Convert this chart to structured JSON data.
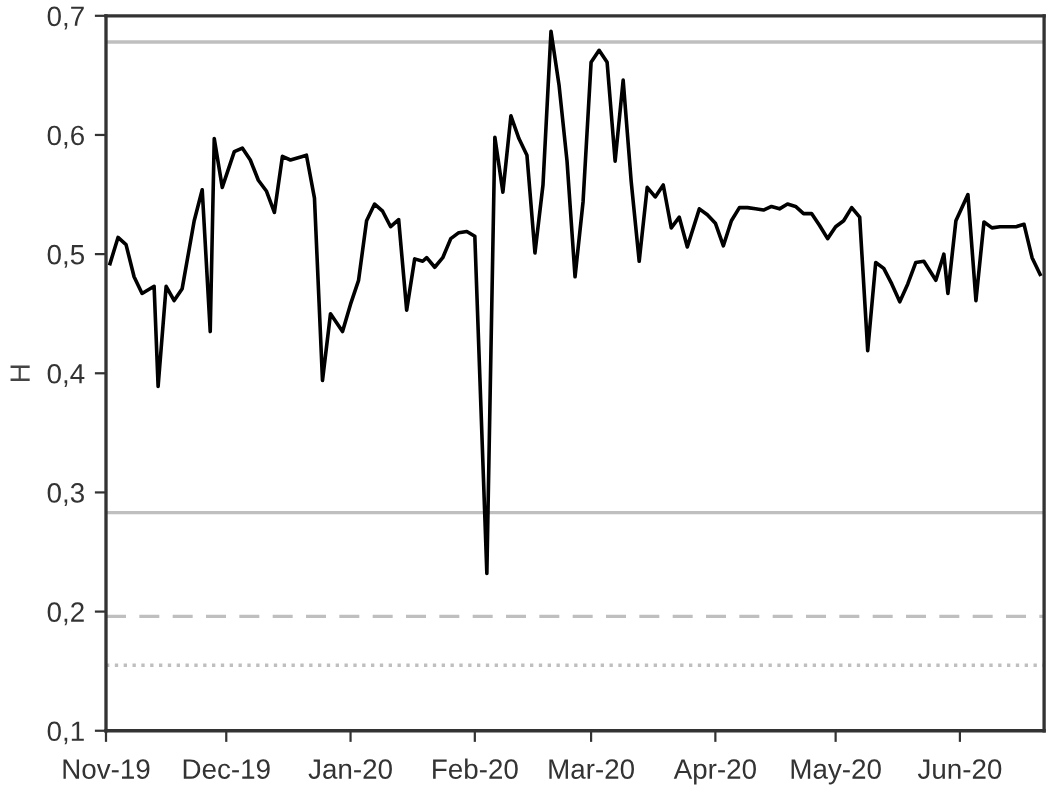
{
  "chart_data": {
    "type": "line",
    "ylabel": "H",
    "series": [
      {
        "color": "#000000",
        "x": [
          "2019-11-02",
          "2019-11-04",
          "2019-11-06",
          "2019-11-08",
          "2019-11-10",
          "2019-11-13",
          "2019-11-14",
          "2019-11-16",
          "2019-11-18",
          "2019-11-20",
          "2019-11-23",
          "2019-11-25",
          "2019-11-27",
          "2019-11-28",
          "2019-11-30",
          "2019-12-03",
          "2019-12-05",
          "2019-12-07",
          "2019-12-09",
          "2019-12-11",
          "2019-12-13",
          "2019-12-15",
          "2019-12-17",
          "2019-12-20",
          "2019-12-21",
          "2019-12-23",
          "2019-12-25",
          "2019-12-27",
          "2019-12-30",
          "2020-01-01",
          "2020-01-03",
          "2020-01-05",
          "2020-01-07",
          "2020-01-09",
          "2020-01-11",
          "2020-01-13",
          "2020-01-15",
          "2020-01-17",
          "2020-01-19",
          "2020-01-20",
          "2020-01-22",
          "2020-01-24",
          "2020-01-26",
          "2020-01-28",
          "2020-01-30",
          "2020-02-01",
          "2020-02-04",
          "2020-02-06",
          "2020-02-08",
          "2020-02-10",
          "2020-02-12",
          "2020-02-14",
          "2020-02-16",
          "2020-02-18",
          "2020-02-20",
          "2020-02-22",
          "2020-02-24",
          "2020-02-26",
          "2020-02-28",
          "2020-03-01",
          "2020-03-03",
          "2020-03-05",
          "2020-03-07",
          "2020-03-09",
          "2020-03-11",
          "2020-03-13",
          "2020-03-15",
          "2020-03-17",
          "2020-03-19",
          "2020-03-21",
          "2020-03-23",
          "2020-03-25",
          "2020-03-28",
          "2020-03-30",
          "2020-04-01",
          "2020-04-03",
          "2020-04-05",
          "2020-04-07",
          "2020-04-09",
          "2020-04-11",
          "2020-04-13",
          "2020-04-15",
          "2020-04-17",
          "2020-04-19",
          "2020-04-21",
          "2020-04-23",
          "2020-04-25",
          "2020-04-27",
          "2020-04-29",
          "2020-05-01",
          "2020-05-03",
          "2020-05-05",
          "2020-05-07",
          "2020-05-09",
          "2020-05-11",
          "2020-05-13",
          "2020-05-15",
          "2020-05-17",
          "2020-05-19",
          "2020-05-21",
          "2020-05-23",
          "2020-05-26",
          "2020-05-28",
          "2020-05-29",
          "2020-05-31",
          "2020-06-03",
          "2020-06-05",
          "2020-06-07",
          "2020-06-09",
          "2020-06-11",
          "2020-06-13",
          "2020-06-15",
          "2020-06-17",
          "2020-06-19",
          "2020-06-21"
        ],
        "values": [
          0.492,
          0.514,
          0.508,
          0.481,
          0.467,
          0.473,
          0.389,
          0.473,
          0.461,
          0.471,
          0.528,
          0.554,
          0.435,
          0.597,
          0.556,
          0.586,
          0.589,
          0.579,
          0.562,
          0.553,
          0.535,
          0.582,
          0.579,
          0.582,
          0.583,
          0.547,
          0.394,
          0.45,
          0.435,
          0.458,
          0.478,
          0.528,
          0.542,
          0.536,
          0.523,
          0.529,
          0.453,
          0.496,
          0.494,
          0.497,
          0.489,
          0.497,
          0.513,
          0.518,
          0.519,
          0.515,
          0.232,
          0.598,
          0.552,
          0.616,
          0.597,
          0.583,
          0.501,
          0.558,
          0.687,
          0.642,
          0.578,
          0.481,
          0.544,
          0.661,
          0.671,
          0.661,
          0.578,
          0.646,
          0.561,
          0.494,
          0.556,
          0.548,
          0.558,
          0.522,
          0.531,
          0.506,
          0.538,
          0.533,
          0.526,
          0.507,
          0.528,
          0.539,
          0.539,
          0.538,
          0.537,
          0.54,
          0.538,
          0.542,
          0.54,
          0.534,
          0.534,
          0.524,
          0.513,
          0.523,
          0.528,
          0.539,
          0.531,
          0.419,
          0.493,
          0.488,
          0.475,
          0.46,
          0.475,
          0.493,
          0.494,
          0.478,
          0.5,
          0.467,
          0.528,
          0.55,
          0.461,
          0.527,
          0.522,
          0.523,
          0.523,
          0.523,
          0.525,
          0.497,
          0.483
        ]
      }
    ],
    "xlim": [
      "2019-11-01",
      "2020-06-22"
    ],
    "xticks": [
      {
        "value": "2019-11-01",
        "label": "Nov-19"
      },
      {
        "value": "2019-12-01",
        "label": "Dec-19"
      },
      {
        "value": "2020-01-01",
        "label": "Jan-20"
      },
      {
        "value": "2020-02-01",
        "label": "Feb-20"
      },
      {
        "value": "2020-03-01",
        "label": "Mar-20"
      },
      {
        "value": "2020-04-01",
        "label": "Apr-20"
      },
      {
        "value": "2020-05-01",
        "label": "May-20"
      },
      {
        "value": "2020-06-01",
        "label": "Jun-20"
      }
    ],
    "ylim": [
      0.1,
      0.7
    ],
    "yticks": [
      {
        "value": 0.1,
        "label": "0,1"
      },
      {
        "value": 0.2,
        "label": "0,2"
      },
      {
        "value": 0.3,
        "label": "0,3"
      },
      {
        "value": 0.4,
        "label": "0,4"
      },
      {
        "value": 0.5,
        "label": "0,5"
      },
      {
        "value": 0.6,
        "label": "0,6"
      },
      {
        "value": 0.7,
        "label": "0,7"
      }
    ],
    "ref_lines": [
      {
        "axis": "y",
        "value": 0.678,
        "color": "#bfbfbf",
        "line_style": "solid"
      },
      {
        "axis": "y",
        "value": 0.283,
        "color": "#bfbfbf",
        "line_style": "solid"
      },
      {
        "axis": "y",
        "value": 0.196,
        "color": "#bfbfbf",
        "line_style": "dashed"
      },
      {
        "axis": "y",
        "value": 0.155,
        "color": "#bfbfbf",
        "line_style": "dotted"
      }
    ],
    "grid": false,
    "marker": "none",
    "line_style": "solid"
  }
}
